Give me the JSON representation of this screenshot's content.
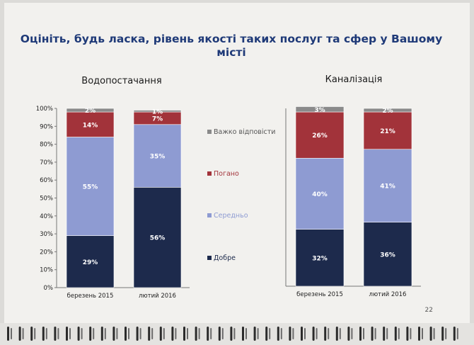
{
  "page": {
    "title": "Оцініть, будь ласка, рівень якості таких послуг та сфер у Вашому місті",
    "title_line1": "Оцініть, будь ласка, рівень якості таких послуг та сфер у Вашому",
    "title_line2": "місті",
    "page_number": "22"
  },
  "colors": {
    "good": "#1d2a4c",
    "medium": "#8e9bd2",
    "bad": "#a2333a",
    "hard": "#8a8a8a",
    "title": "#1f3a78"
  },
  "legend": [
    {
      "key": "hard",
      "label": "Важко відповісти"
    },
    {
      "key": "bad",
      "label": "Погано"
    },
    {
      "key": "medium",
      "label": "Середньо"
    },
    {
      "key": "good",
      "label": "Добре"
    }
  ],
  "chart_data": [
    {
      "type": "bar",
      "stacked": true,
      "title": "Водопостачання",
      "categories": [
        "березень 2015",
        "лютий 2016"
      ],
      "ylim": [
        0,
        100
      ],
      "yticks": [
        "0%",
        "10%",
        "20%",
        "30%",
        "40%",
        "50%",
        "60%",
        "70%",
        "80%",
        "90%",
        "100%"
      ],
      "series": [
        {
          "name": "Добре",
          "key": "good",
          "values": [
            29,
            56
          ],
          "labels": [
            "29%",
            "56%"
          ]
        },
        {
          "name": "Середньо",
          "key": "medium",
          "values": [
            55,
            35
          ],
          "labels": [
            "55%",
            "35%"
          ]
        },
        {
          "name": "Погано",
          "key": "bad",
          "values": [
            14,
            7
          ],
          "labels": [
            "14%",
            "7%"
          ]
        },
        {
          "name": "Важко відповісти",
          "key": "hard",
          "values": [
            2,
            1
          ],
          "labels": [
            "2%",
            "1%"
          ]
        }
      ]
    },
    {
      "type": "bar",
      "stacked": true,
      "title": "Каналізація",
      "categories": [
        "березень 2015",
        "лютий 2016"
      ],
      "ylim": [
        0,
        100
      ],
      "series": [
        {
          "name": "Добре",
          "key": "good",
          "values": [
            32,
            36
          ],
          "labels": [
            "32%",
            "36%"
          ]
        },
        {
          "name": "Середньо",
          "key": "medium",
          "values": [
            40,
            41
          ],
          "labels": [
            "40%",
            "41%"
          ]
        },
        {
          "name": "Погано",
          "key": "bad",
          "values": [
            26,
            21
          ],
          "labels": [
            "26%",
            "21%"
          ]
        },
        {
          "name": "Важко відповісти",
          "key": "hard",
          "values": [
            3,
            2
          ],
          "labels": [
            "3%",
            "2%"
          ]
        }
      ]
    }
  ]
}
